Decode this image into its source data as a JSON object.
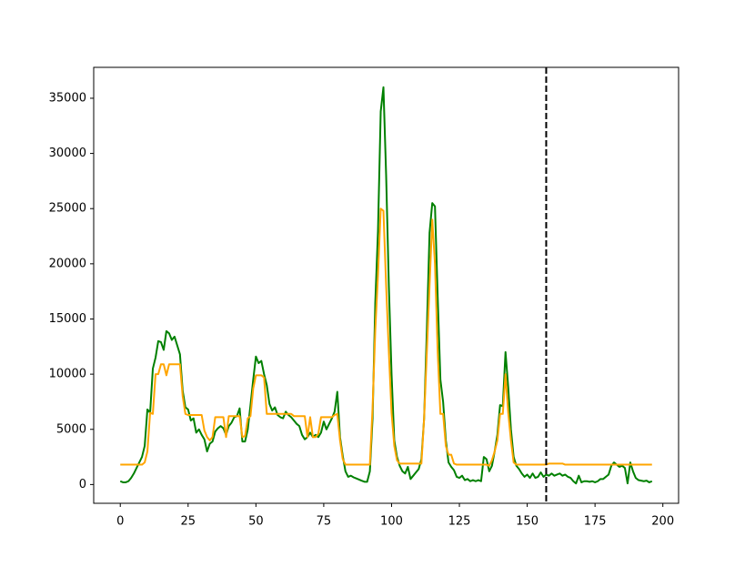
{
  "chart_data": {
    "type": "line",
    "x": [
      0,
      1,
      2,
      3,
      4,
      5,
      6,
      7,
      8,
      9,
      10,
      11,
      12,
      13,
      14,
      15,
      16,
      17,
      18,
      19,
      20,
      21,
      22,
      23,
      24,
      25,
      26,
      27,
      28,
      29,
      30,
      31,
      32,
      33,
      34,
      35,
      36,
      37,
      38,
      39,
      40,
      41,
      42,
      43,
      44,
      45,
      46,
      47,
      48,
      49,
      50,
      51,
      52,
      53,
      54,
      55,
      56,
      57,
      58,
      59,
      60,
      61,
      62,
      63,
      64,
      65,
      66,
      67,
      68,
      69,
      70,
      71,
      72,
      73,
      74,
      75,
      76,
      77,
      78,
      79,
      80,
      81,
      82,
      83,
      84,
      85,
      86,
      87,
      88,
      89,
      90,
      91,
      92,
      93,
      94,
      95,
      96,
      97,
      98,
      99,
      100,
      101,
      102,
      103,
      104,
      105,
      106,
      107,
      108,
      109,
      110,
      111,
      112,
      113,
      114,
      115,
      116,
      117,
      118,
      119,
      120,
      121,
      122,
      123,
      124,
      125,
      126,
      127,
      128,
      129,
      130,
      131,
      132,
      133,
      134,
      135,
      136,
      137,
      138,
      139,
      140,
      141,
      142,
      143,
      144,
      145,
      146,
      147,
      148,
      149,
      150,
      151,
      152,
      153,
      154,
      155,
      156,
      157,
      158,
      159,
      160,
      161,
      162,
      163,
      164,
      165,
      166,
      167,
      168,
      169,
      170,
      171,
      172,
      173,
      174,
      175,
      176,
      177,
      178,
      179,
      180,
      181,
      182,
      183,
      184,
      185,
      186,
      187,
      188,
      189,
      190,
      191,
      192,
      193,
      194,
      195,
      196
    ],
    "series": [
      {
        "color": "green",
        "values": [
          300,
          200,
          200,
          300,
          600,
          1000,
          1500,
          2000,
          2500,
          3500,
          6800,
          6500,
          10500,
          11500,
          13000,
          12900,
          12200,
          13900,
          13700,
          13100,
          13400,
          12600,
          11800,
          8500,
          7000,
          6800,
          5800,
          6000,
          4700,
          5000,
          4500,
          4100,
          3000,
          3700,
          3900,
          4800,
          5100,
          5300,
          5100,
          4500,
          5300,
          5600,
          6100,
          6200,
          6900,
          3900,
          3900,
          5000,
          7200,
          9500,
          11600,
          11000,
          11200,
          10000,
          9000,
          7300,
          6700,
          7000,
          6300,
          6100,
          6000,
          6600,
          6300,
          6100,
          5800,
          5500,
          5300,
          4500,
          4100,
          4300,
          4700,
          4300,
          4500,
          4300,
          4700,
          5700,
          5000,
          5500,
          6000,
          6600,
          8400,
          4300,
          2600,
          1200,
          700,
          800,
          650,
          550,
          450,
          350,
          250,
          250,
          1200,
          6000,
          16500,
          23000,
          33800,
          36000,
          28000,
          18000,
          10000,
          4000,
          2500,
          1700,
          1200,
          1000,
          1600,
          500,
          800,
          1100,
          1400,
          2300,
          6000,
          14000,
          22800,
          25500,
          25200,
          17000,
          9500,
          7500,
          4000,
          2000,
          1600,
          1300,
          700,
          600,
          800,
          400,
          500,
          300,
          400,
          300,
          400,
          300,
          2500,
          2300,
          1200,
          1700,
          3000,
          4500,
          7200,
          7100,
          12000,
          8800,
          5000,
          2500,
          1700,
          1400,
          1000,
          700,
          900,
          600,
          1000,
          600,
          700,
          1100,
          700,
          900,
          800,
          1000,
          800,
          900,
          1000,
          800,
          900,
          700,
          600,
          300,
          100,
          800,
          200,
          300,
          300,
          250,
          300,
          200,
          300,
          500,
          500,
          700,
          900,
          1700,
          2000,
          1800,
          1600,
          1700,
          1500,
          100,
          2000,
          1200,
          600,
          400,
          350,
          300,
          350,
          200,
          300
        ]
      },
      {
        "color": "orange",
        "values": [
          1800,
          1800,
          1800,
          1800,
          1800,
          1800,
          1800,
          1800,
          1800,
          2000,
          3000,
          6500,
          6400,
          10000,
          10000,
          10900,
          10900,
          9900,
          10900,
          10900,
          10900,
          10900,
          10900,
          8000,
          6400,
          6300,
          6300,
          6300,
          6300,
          6300,
          6300,
          4900,
          4300,
          4000,
          4300,
          6100,
          6100,
          6100,
          6100,
          4300,
          6200,
          6200,
          6200,
          6200,
          6200,
          4300,
          4400,
          6000,
          6200,
          8700,
          9900,
          9900,
          9900,
          9700,
          6400,
          6400,
          6400,
          6400,
          6400,
          6400,
          6400,
          6400,
          6400,
          6400,
          6200,
          6200,
          6200,
          6200,
          6200,
          4300,
          6100,
          4300,
          4300,
          4600,
          6100,
          6100,
          6100,
          6100,
          6100,
          6300,
          6400,
          4000,
          2300,
          1800,
          1800,
          1800,
          1800,
          1800,
          1800,
          1800,
          1800,
          1800,
          1800,
          7000,
          14000,
          19000,
          25000,
          24800,
          18000,
          12000,
          6500,
          3500,
          2200,
          1900,
          1900,
          1900,
          1900,
          1900,
          1900,
          1900,
          1900,
          1900,
          6000,
          12000,
          18000,
          24000,
          20000,
          12000,
          6400,
          6400,
          3500,
          2700,
          2700,
          1900,
          1800,
          1800,
          1800,
          1800,
          1800,
          1800,
          1800,
          1800,
          1800,
          1800,
          1800,
          1800,
          1700,
          2200,
          3000,
          4000,
          6400,
          6400,
          10000,
          6500,
          4000,
          2000,
          1800,
          1800,
          1800,
          1800,
          1800,
          1800,
          1800,
          1800,
          1800,
          1800,
          1800,
          1800,
          1900,
          1900,
          1900,
          1900,
          1900,
          1900,
          1800,
          1800,
          1800,
          1800,
          1800,
          1800,
          1800,
          1800,
          1800,
          1800,
          1800,
          1800,
          1800,
          1800,
          1800,
          1800,
          1800,
          1800,
          1800,
          1800,
          1800,
          1800,
          1800,
          1800,
          1800,
          1800,
          1800,
          1800,
          1800,
          1800,
          1800,
          1800,
          1800
        ]
      }
    ],
    "vline": {
      "x": 157,
      "color": "black",
      "style": "dashed"
    },
    "xlim": [
      -9.8,
      205.8
    ],
    "xticks": [
      0,
      25,
      50,
      75,
      100,
      125,
      150,
      175,
      200
    ],
    "ylim": [
      -1700,
      37800
    ],
    "yticks": [
      0,
      5000,
      10000,
      15000,
      20000,
      25000,
      30000,
      35000
    ],
    "grid": false
  }
}
